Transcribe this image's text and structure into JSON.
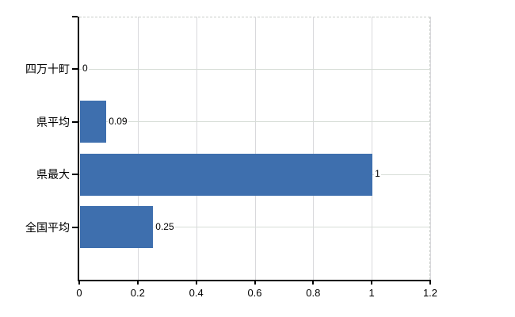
{
  "chart_data": {
    "type": "bar",
    "orientation": "horizontal",
    "title": "",
    "xlabel": "",
    "ylabel": "",
    "categories": [
      "四万十町",
      "県平均",
      "県最大",
      "全国平均"
    ],
    "values": [
      0,
      0.09,
      1,
      0.25
    ],
    "data_labels": [
      "0",
      "0.09",
      "1",
      "0.25"
    ],
    "x_ticks": [
      0,
      0.2,
      0.4,
      0.6,
      0.8,
      1,
      1.2
    ],
    "x_tick_labels": [
      "0",
      "0.2",
      "0.4",
      "0.6",
      "0.8",
      "1",
      "1.2"
    ],
    "xlim": [
      0,
      1.2
    ],
    "grid": true,
    "legend": false,
    "colors": {
      "bar_fill": "#3e6fae",
      "axis": "#000000",
      "gridline_h": "#d7ddd7",
      "gridline_v": "#d9d9dc",
      "plot_border_dashed": "#c9cdc9",
      "text": "#000000",
      "background": "#ffffff"
    }
  }
}
